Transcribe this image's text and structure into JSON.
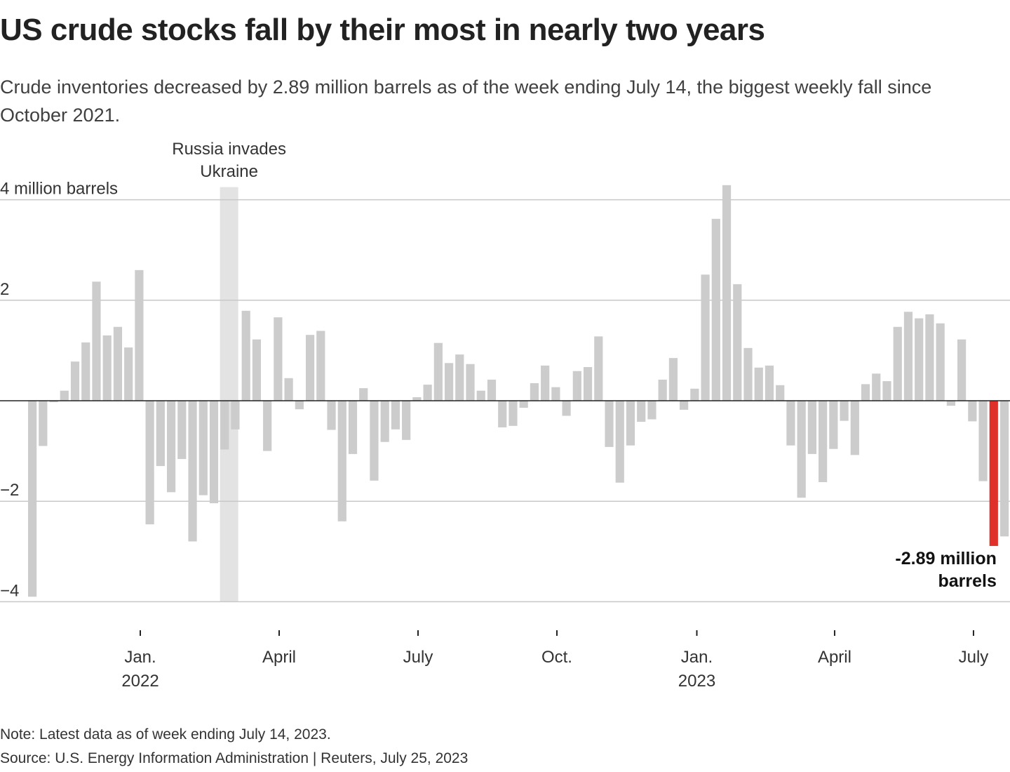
{
  "header": {
    "title": "US crude stocks fall by their most in nearly two years",
    "subtitle": "Crude inventories decreased by 2.89 million barrels as of the week ending July 14, the biggest weekly fall since October 2021."
  },
  "footer": {
    "note": "Note: Latest data as of week ending July 14, 2023.",
    "source": "Source: U.S. Energy Information Administration | Reuters, July 25, 2023"
  },
  "colors": {
    "bar": "#cccccc",
    "highlight": "#e0302a",
    "shade": "#e3e3e3",
    "grid": "#c8c8c8",
    "zero_line": "#222222"
  },
  "chart_data": {
    "type": "bar",
    "ylim": [
      -4,
      4
    ],
    "y_ticks": [
      {
        "value": 4,
        "label": "4 million barrels"
      },
      {
        "value": 2,
        "label": "2"
      },
      {
        "value": -2,
        "label": "−2"
      },
      {
        "value": -4,
        "label": "−4"
      }
    ],
    "x_ticks": [
      {
        "index": 10.5,
        "line1": "Jan.",
        "line2": "2022"
      },
      {
        "index": 23.5,
        "line1": "April",
        "line2": ""
      },
      {
        "index": 36.5,
        "line1": "July",
        "line2": ""
      },
      {
        "index": 49.5,
        "line1": "Oct.",
        "line2": ""
      },
      {
        "index": 62.6,
        "line1": "Jan.",
        "line2": "2023"
      },
      {
        "index": 75.5,
        "line1": "April",
        "line2": ""
      },
      {
        "index": 88.5,
        "line1": "July",
        "line2": ""
      }
    ],
    "values": [
      -3.9,
      -0.9,
      -0.03,
      0.2,
      0.78,
      1.16,
      2.37,
      1.3,
      1.47,
      1.06,
      2.6,
      -2.46,
      -1.3,
      -1.82,
      -1.16,
      -2.8,
      -1.88,
      -2.04,
      -0.97,
      -0.57,
      1.79,
      1.22,
      -1.0,
      1.66,
      0.45,
      -0.17,
      1.31,
      1.39,
      -0.58,
      -2.4,
      -1.06,
      0.25,
      -1.59,
      -0.82,
      -0.57,
      -0.78,
      0.07,
      0.32,
      1.15,
      0.75,
      0.92,
      0.73,
      0.2,
      0.42,
      -0.53,
      -0.5,
      -0.14,
      0.35,
      0.7,
      0.27,
      -0.3,
      0.59,
      0.67,
      1.28,
      -0.92,
      -1.63,
      -0.89,
      -0.42,
      -0.37,
      0.42,
      0.85,
      -0.18,
      0.24,
      2.51,
      3.62,
      4.29,
      2.32,
      1.05,
      0.66,
      0.7,
      0.31,
      -0.89,
      -1.93,
      -1.06,
      -1.62,
      -0.96,
      -0.4,
      -1.08,
      0.33,
      0.54,
      0.39,
      1.47,
      1.77,
      1.64,
      1.72,
      1.54,
      -0.1,
      1.22,
      -0.41,
      -1.6,
      -2.89,
      -2.7
    ],
    "highlight_index": 90,
    "annotations": [
      {
        "text_line1": "Russia invades",
        "text_line2": "Ukraine",
        "index": 18,
        "kind": "shaded-band"
      },
      {
        "text_line1": "-2.89 million",
        "text_line2": "barrels",
        "index": 90,
        "kind": "callout"
      }
    ]
  }
}
